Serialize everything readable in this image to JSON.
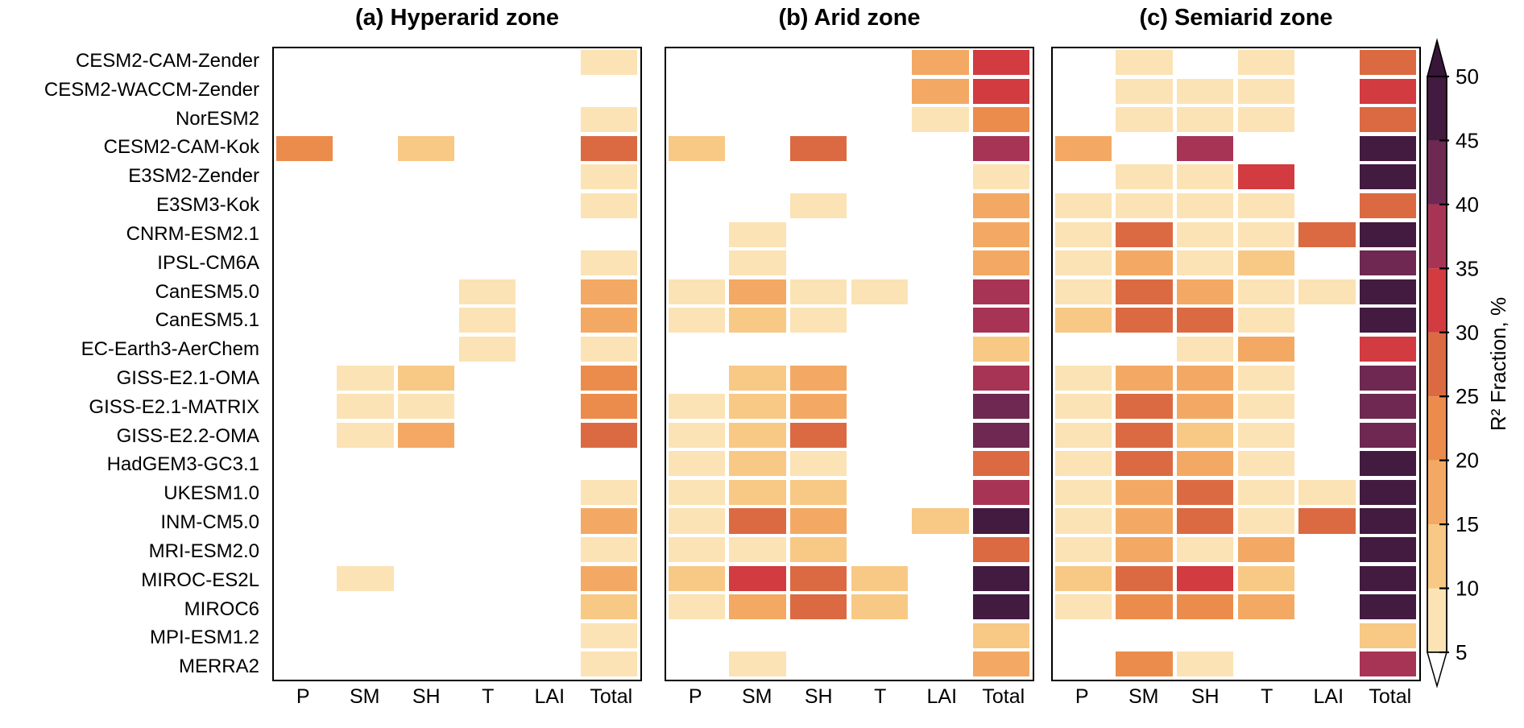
{
  "figure": {
    "background": "#ffffff",
    "border_color": "#000000",
    "text_color": "#000000"
  },
  "chart_data": {
    "type": "heatmap",
    "description": "Fraction of dust variance explained (R2) per driver variable for each model, in three aridity zones; discrete 5% color bins",
    "columns": [
      "P",
      "SM",
      "SH",
      "T",
      "LAI",
      "Total"
    ],
    "rows": [
      "CESM2-CAM-Zender",
      "CESM2-WACCM-Zender",
      "NorESM2",
      "CESM2-CAM-Kok",
      "E3SM2-Zender",
      "E3SM3-Kok",
      "CNRM-ESM2.1",
      "IPSL-CM6A",
      "CanESM5.0",
      "CanESM5.1",
      "EC-Earth3-AerChem",
      "GISS-E2.1-OMA",
      "GISS-E2.1-MATRIX",
      "GISS-E2.2-OMA",
      "HadGEM3-GC3.1",
      "UKESM1.0",
      "INM-CM5.0",
      "MRI-ESM2.0",
      "MIROC-ES2L",
      "MIROC6",
      "MPI-ESM1.2",
      "MERRA2"
    ],
    "value_units": "R2 Fraction, %",
    "null_means": "below 5% (shown white)",
    "panels": [
      {
        "id": "a",
        "title": "(a) Hyperarid zone",
        "values": [
          [
            null,
            null,
            null,
            null,
            null,
            7.5
          ],
          [
            null,
            null,
            null,
            null,
            null,
            null
          ],
          [
            null,
            null,
            null,
            null,
            null,
            7.5
          ],
          [
            22.5,
            null,
            12.5,
            null,
            null,
            27.5
          ],
          [
            null,
            null,
            null,
            null,
            null,
            7.5
          ],
          [
            null,
            null,
            null,
            null,
            null,
            7.5
          ],
          [
            null,
            null,
            null,
            null,
            null,
            null
          ],
          [
            null,
            null,
            null,
            null,
            null,
            7.5
          ],
          [
            null,
            null,
            null,
            7.5,
            null,
            17.5
          ],
          [
            null,
            null,
            null,
            7.5,
            null,
            17.5
          ],
          [
            null,
            null,
            null,
            7.5,
            null,
            7.5
          ],
          [
            null,
            7.5,
            12.5,
            null,
            null,
            22.5
          ],
          [
            null,
            7.5,
            7.5,
            null,
            null,
            22.5
          ],
          [
            null,
            7.5,
            17.5,
            null,
            null,
            27.5
          ],
          [
            null,
            null,
            null,
            null,
            null,
            null
          ],
          [
            null,
            null,
            null,
            null,
            null,
            7.5
          ],
          [
            null,
            null,
            null,
            null,
            null,
            17.5
          ],
          [
            null,
            null,
            null,
            null,
            null,
            7.5
          ],
          [
            null,
            7.5,
            null,
            null,
            null,
            17.5
          ],
          [
            null,
            null,
            null,
            null,
            null,
            12.5
          ],
          [
            null,
            null,
            null,
            null,
            null,
            7.5
          ],
          [
            null,
            null,
            null,
            null,
            null,
            7.5
          ]
        ]
      },
      {
        "id": "b",
        "title": "(b) Arid zone",
        "values": [
          [
            null,
            null,
            null,
            null,
            17.5,
            32.5
          ],
          [
            null,
            null,
            null,
            null,
            17.5,
            32.5
          ],
          [
            null,
            null,
            null,
            null,
            7.5,
            22.5
          ],
          [
            12.5,
            null,
            27.5,
            null,
            null,
            37.5
          ],
          [
            null,
            null,
            null,
            null,
            null,
            7.5
          ],
          [
            null,
            null,
            7.5,
            null,
            null,
            17.5
          ],
          [
            null,
            7.5,
            null,
            null,
            null,
            17.5
          ],
          [
            null,
            7.5,
            null,
            null,
            null,
            17.5
          ],
          [
            7.5,
            17.5,
            7.5,
            7.5,
            null,
            37.5
          ],
          [
            7.5,
            12.5,
            7.5,
            null,
            null,
            37.5
          ],
          [
            null,
            null,
            null,
            null,
            null,
            12.5
          ],
          [
            null,
            12.5,
            17.5,
            null,
            null,
            37.5
          ],
          [
            7.5,
            12.5,
            17.5,
            null,
            null,
            42.5
          ],
          [
            7.5,
            12.5,
            27.5,
            null,
            null,
            42.5
          ],
          [
            7.5,
            12.5,
            7.5,
            null,
            null,
            27.5
          ],
          [
            7.5,
            12.5,
            12.5,
            null,
            null,
            37.5
          ],
          [
            7.5,
            27.5,
            17.5,
            null,
            12.5,
            47.5
          ],
          [
            7.5,
            7.5,
            12.5,
            null,
            null,
            27.5
          ],
          [
            12.5,
            32.5,
            27.5,
            12.5,
            null,
            47.5
          ],
          [
            7.5,
            17.5,
            27.5,
            12.5,
            null,
            47.5
          ],
          [
            null,
            null,
            null,
            null,
            null,
            12.5
          ],
          [
            null,
            7.5,
            null,
            null,
            null,
            17.5
          ]
        ]
      },
      {
        "id": "c",
        "title": "(c) Semiarid zone",
        "values": [
          [
            null,
            7.5,
            null,
            7.5,
            null,
            27.5
          ],
          [
            null,
            7.5,
            7.5,
            7.5,
            null,
            32.5
          ],
          [
            null,
            7.5,
            7.5,
            7.5,
            null,
            27.5
          ],
          [
            17.5,
            null,
            37.5,
            null,
            null,
            47.5
          ],
          [
            null,
            7.5,
            7.5,
            32.5,
            null,
            47.5
          ],
          [
            7.5,
            7.5,
            7.5,
            7.5,
            null,
            27.5
          ],
          [
            7.5,
            27.5,
            7.5,
            7.5,
            27.5,
            47.5
          ],
          [
            7.5,
            17.5,
            7.5,
            12.5,
            null,
            42.5
          ],
          [
            7.5,
            27.5,
            17.5,
            7.5,
            7.5,
            47.5
          ],
          [
            12.5,
            27.5,
            27.5,
            7.5,
            null,
            47.5
          ],
          [
            null,
            null,
            7.5,
            17.5,
            null,
            32.5
          ],
          [
            7.5,
            17.5,
            17.5,
            7.5,
            null,
            42.5
          ],
          [
            7.5,
            27.5,
            17.5,
            7.5,
            null,
            42.5
          ],
          [
            7.5,
            27.5,
            12.5,
            7.5,
            null,
            42.5
          ],
          [
            7.5,
            27.5,
            17.5,
            7.5,
            null,
            47.5
          ],
          [
            7.5,
            17.5,
            27.5,
            7.5,
            7.5,
            47.5
          ],
          [
            7.5,
            17.5,
            27.5,
            7.5,
            27.5,
            47.5
          ],
          [
            7.5,
            17.5,
            7.5,
            17.5,
            null,
            47.5
          ],
          [
            12.5,
            27.5,
            32.5,
            12.5,
            null,
            47.5
          ],
          [
            7.5,
            22.5,
            22.5,
            17.5,
            null,
            47.5
          ],
          [
            null,
            null,
            null,
            null,
            null,
            12.5
          ],
          [
            null,
            22.5,
            7.5,
            null,
            null,
            37.5
          ]
        ]
      }
    ],
    "color_bins": [
      {
        "range": [
          5,
          10
        ],
        "color": "#FBE3B5"
      },
      {
        "range": [
          10,
          15
        ],
        "color": "#F8C885"
      },
      {
        "range": [
          15,
          20
        ],
        "color": "#F3A963"
      },
      {
        "range": [
          20,
          25
        ],
        "color": "#EC8C4C"
      },
      {
        "range": [
          25,
          30
        ],
        "color": "#DB6A42"
      },
      {
        "range": [
          30,
          35
        ],
        "color": "#D23B40"
      },
      {
        "range": [
          35,
          40
        ],
        "color": "#A83455"
      },
      {
        "range": [
          40,
          45
        ],
        "color": "#6E2851"
      },
      {
        "range": [
          45,
          50
        ],
        "color": "#431A40"
      }
    ],
    "colorbar": {
      "label": "R² Fraction, %",
      "ticks": [
        5,
        10,
        15,
        20,
        25,
        30,
        35,
        40,
        45,
        50
      ],
      "min": 5,
      "max": 50,
      "over_color": "#38163A",
      "under_color": "#FFFFFF"
    }
  }
}
